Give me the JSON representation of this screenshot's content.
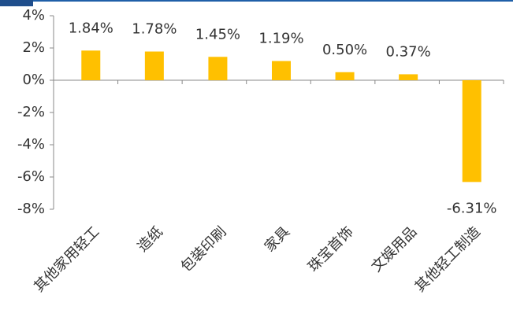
{
  "chart_data": {
    "type": "bar",
    "categories": [
      "其他家用轻工",
      "造纸",
      "包装印刷",
      "家具",
      "珠宝首饰",
      "文娱用品",
      "其他轻工制造"
    ],
    "values": [
      1.84,
      1.78,
      1.45,
      1.19,
      0.5,
      0.37,
      -6.31
    ],
    "value_labels": [
      "1.84%",
      "1.78%",
      "1.45%",
      "1.19%",
      "0.50%",
      "0.37%",
      "-6.31%"
    ],
    "color": "#FFC000",
    "ylim": [
      -8,
      4
    ],
    "yticks": [
      {
        "value": -8,
        "label": "-8%"
      },
      {
        "value": -6,
        "label": "-6%"
      },
      {
        "value": -4,
        "label": "-4%"
      },
      {
        "value": -2,
        "label": "-2%"
      },
      {
        "value": 0,
        "label": "0%"
      },
      {
        "value": 2,
        "label": "2%"
      },
      {
        "value": 4,
        "label": "4%"
      }
    ]
  }
}
